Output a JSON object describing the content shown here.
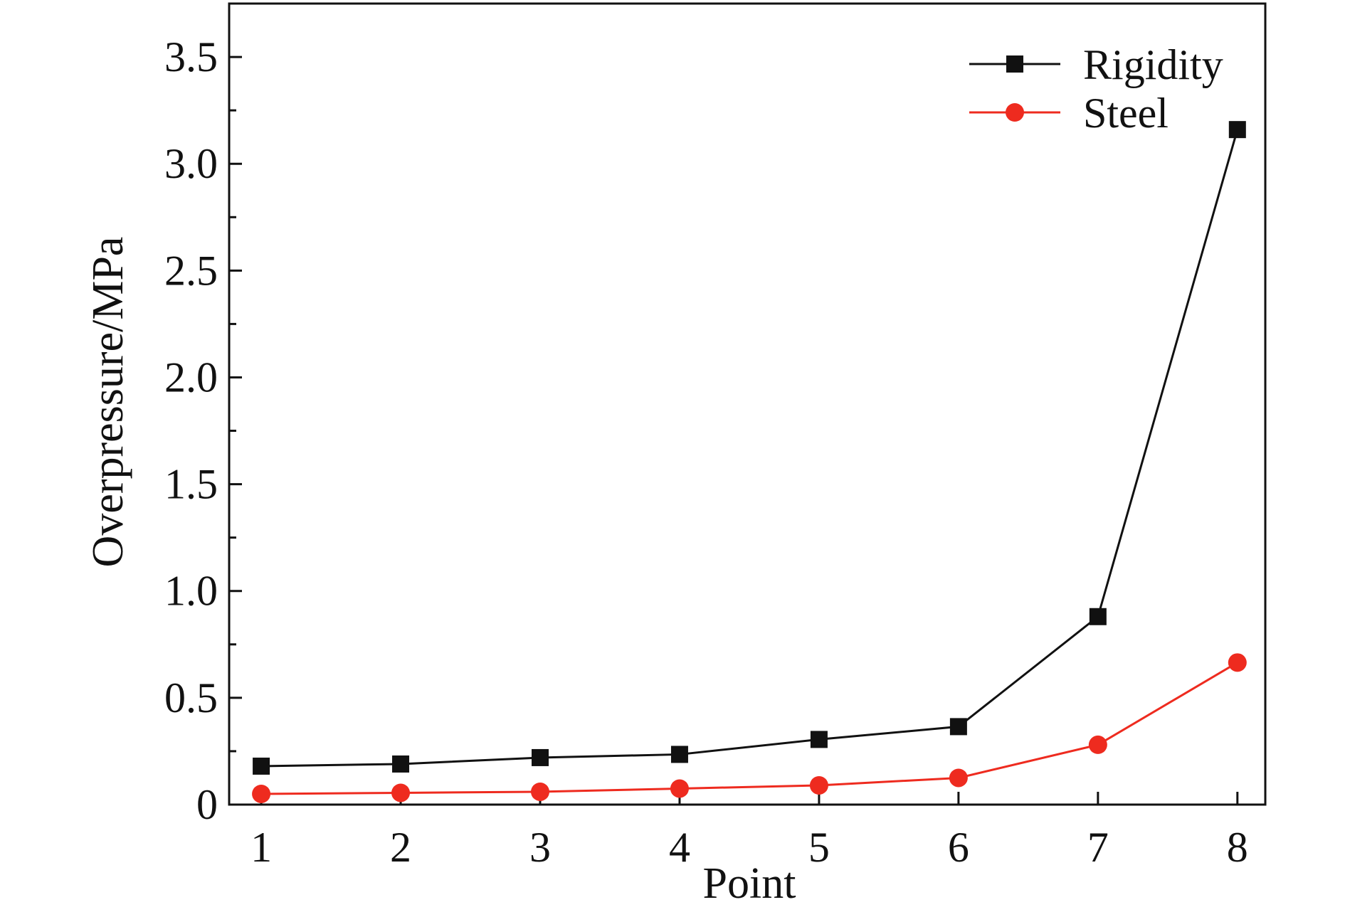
{
  "chart_data": {
    "type": "line",
    "title": "",
    "xlabel": "Point",
    "ylabel": "Overpressure/MPa",
    "x": [
      1,
      2,
      3,
      4,
      5,
      6,
      7,
      8
    ],
    "xlim": [
      0.77,
      8.2
    ],
    "ylim": [
      0,
      3.75
    ],
    "yticks": [
      0,
      0.5,
      1.0,
      1.5,
      2.0,
      2.5,
      3.0,
      3.5
    ],
    "ytick_labels": [
      "0",
      "0.5",
      "1.0",
      "1.5",
      "2.0",
      "2.5",
      "3.0",
      "3.5"
    ],
    "xtick_labels": [
      "1",
      "2",
      "3",
      "4",
      "5",
      "6",
      "7",
      "8"
    ],
    "grid": false,
    "legend": {
      "placement": "top-right"
    },
    "series": [
      {
        "name": "Rigidity",
        "color": "#111111",
        "marker": "square",
        "values": [
          0.18,
          0.19,
          0.22,
          0.235,
          0.305,
          0.365,
          0.88,
          3.16
        ]
      },
      {
        "name": "Steel",
        "color": "#ee2b1f",
        "marker": "circle",
        "values": [
          0.05,
          0.055,
          0.06,
          0.075,
          0.09,
          0.125,
          0.28,
          0.665
        ]
      }
    ]
  }
}
